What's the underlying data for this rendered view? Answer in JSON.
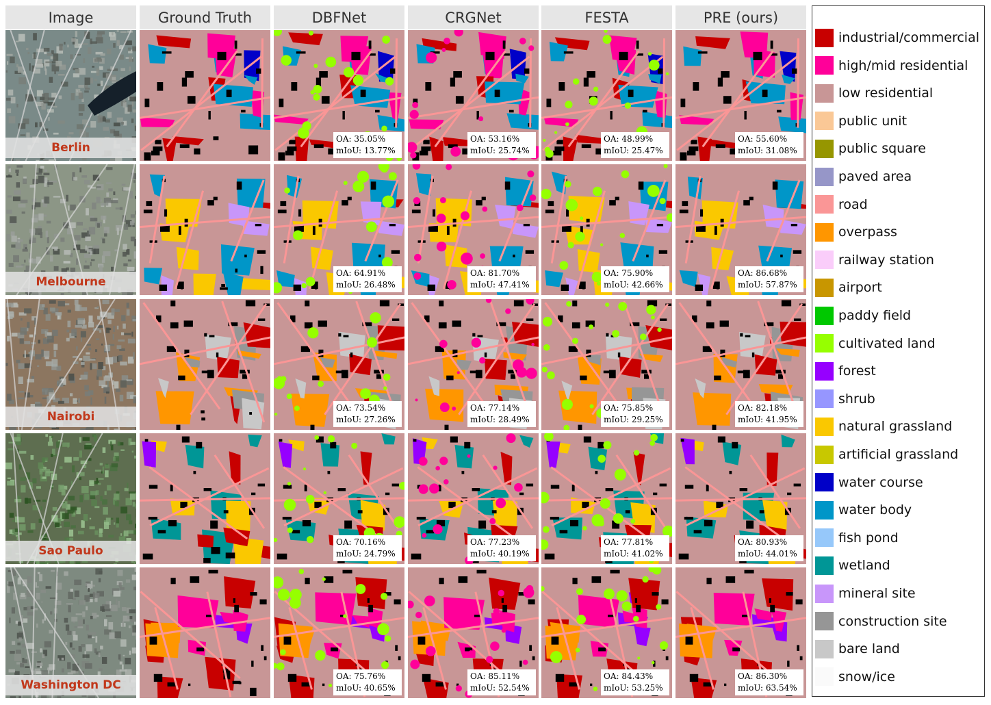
{
  "columns": [
    "Image",
    "Ground Truth",
    "DBFNet",
    "CRGNet",
    "FESTA",
    "PRE (ours)"
  ],
  "rows": [
    {
      "city": "Berlin",
      "metrics": [
        {
          "oa": "OA: 35.05%",
          "miou": "mIoU: 13.77%"
        },
        {
          "oa": "OA: 53.16%",
          "miou": "mIoU: 25.74%"
        },
        {
          "oa": "OA: 48.99%",
          "miou": "mIoU: 25.47%"
        },
        {
          "oa": "OA: 55.60%",
          "miou": "mIoU: 31.08%"
        }
      ]
    },
    {
      "city": "Melbourne",
      "metrics": [
        {
          "oa": "OA: 64.91%",
          "miou": "mIoU: 26.48%"
        },
        {
          "oa": "OA: 81.70%",
          "miou": "mIoU: 47.41%"
        },
        {
          "oa": "OA: 75.90%",
          "miou": "mIoU: 42.66%"
        },
        {
          "oa": "OA: 86.68%",
          "miou": "mIoU: 57.87%"
        }
      ]
    },
    {
      "city": "Nairobi",
      "metrics": [
        {
          "oa": "OA: 73.54%",
          "miou": "mIoU: 27.26%"
        },
        {
          "oa": "OA: 77.14%",
          "miou": "mIoU: 28.49%"
        },
        {
          "oa": "OA: 75.85%",
          "miou": "mIoU: 29.25%"
        },
        {
          "oa": "OA: 82.18%",
          "miou": "mIoU: 41.95%"
        }
      ]
    },
    {
      "city": "Sao Paulo",
      "metrics": [
        {
          "oa": "OA: 70.16%",
          "miou": "mIoU: 24.79%"
        },
        {
          "oa": "OA: 77.23%",
          "miou": "mIoU: 40.19%"
        },
        {
          "oa": "OA: 77.81%",
          "miou": "mIoU: 41.02%"
        },
        {
          "oa": "OA: 80.93%",
          "miou": "mIoU: 44.01%"
        }
      ]
    },
    {
      "city": "Washington  DC",
      "metrics": [
        {
          "oa": "OA: 75.76%",
          "miou": "mIoU: 40.65%"
        },
        {
          "oa": "OA: 85.11%",
          "miou": "mIoU: 52.54%"
        },
        {
          "oa": "OA: 84.43%",
          "miou": "mIoU: 53.25%"
        },
        {
          "oa": "OA: 86.30%",
          "miou": "mIoU: 63.54%"
        }
      ]
    }
  ],
  "legend": [
    {
      "label": "industrial/commercial",
      "color": "#c80000"
    },
    {
      "label": "high/mid residential",
      "color": "#ff0099"
    },
    {
      "label": "low residential",
      "color": "#c89696"
    },
    {
      "label": "public unit",
      "color": "#fac896"
    },
    {
      "label": "public square",
      "color": "#969600"
    },
    {
      "label": "paved area",
      "color": "#9696c8"
    },
    {
      "label": "road",
      "color": "#fa9696"
    },
    {
      "label": "overpass",
      "color": "#ff9600"
    },
    {
      "label": "railway station",
      "color": "#facdfa"
    },
    {
      "label": "airport",
      "color": "#c89600"
    },
    {
      "label": "paddy field",
      "color": "#00c800"
    },
    {
      "label": "cultivated land",
      "color": "#96ff00"
    },
    {
      "label": "forest",
      "color": "#9600ff"
    },
    {
      "label": "shrub",
      "color": "#9696ff"
    },
    {
      "label": "natural grassland",
      "color": "#fac800"
    },
    {
      "label": "artificial grassland",
      "color": "#c8c800"
    },
    {
      "label": "water course",
      "color": "#0000c8"
    },
    {
      "label": "water body",
      "color": "#0096c8"
    },
    {
      "label": "fish pond",
      "color": "#96c8fa"
    },
    {
      "label": "wetland",
      "color": "#009696"
    },
    {
      "label": "mineral site",
      "color": "#c896fa"
    },
    {
      "label": "construction site",
      "color": "#969696"
    },
    {
      "label": "bare land",
      "color": "#c8c8c8"
    },
    {
      "label": "snow/ice",
      "color": "#fafafa"
    }
  ]
}
